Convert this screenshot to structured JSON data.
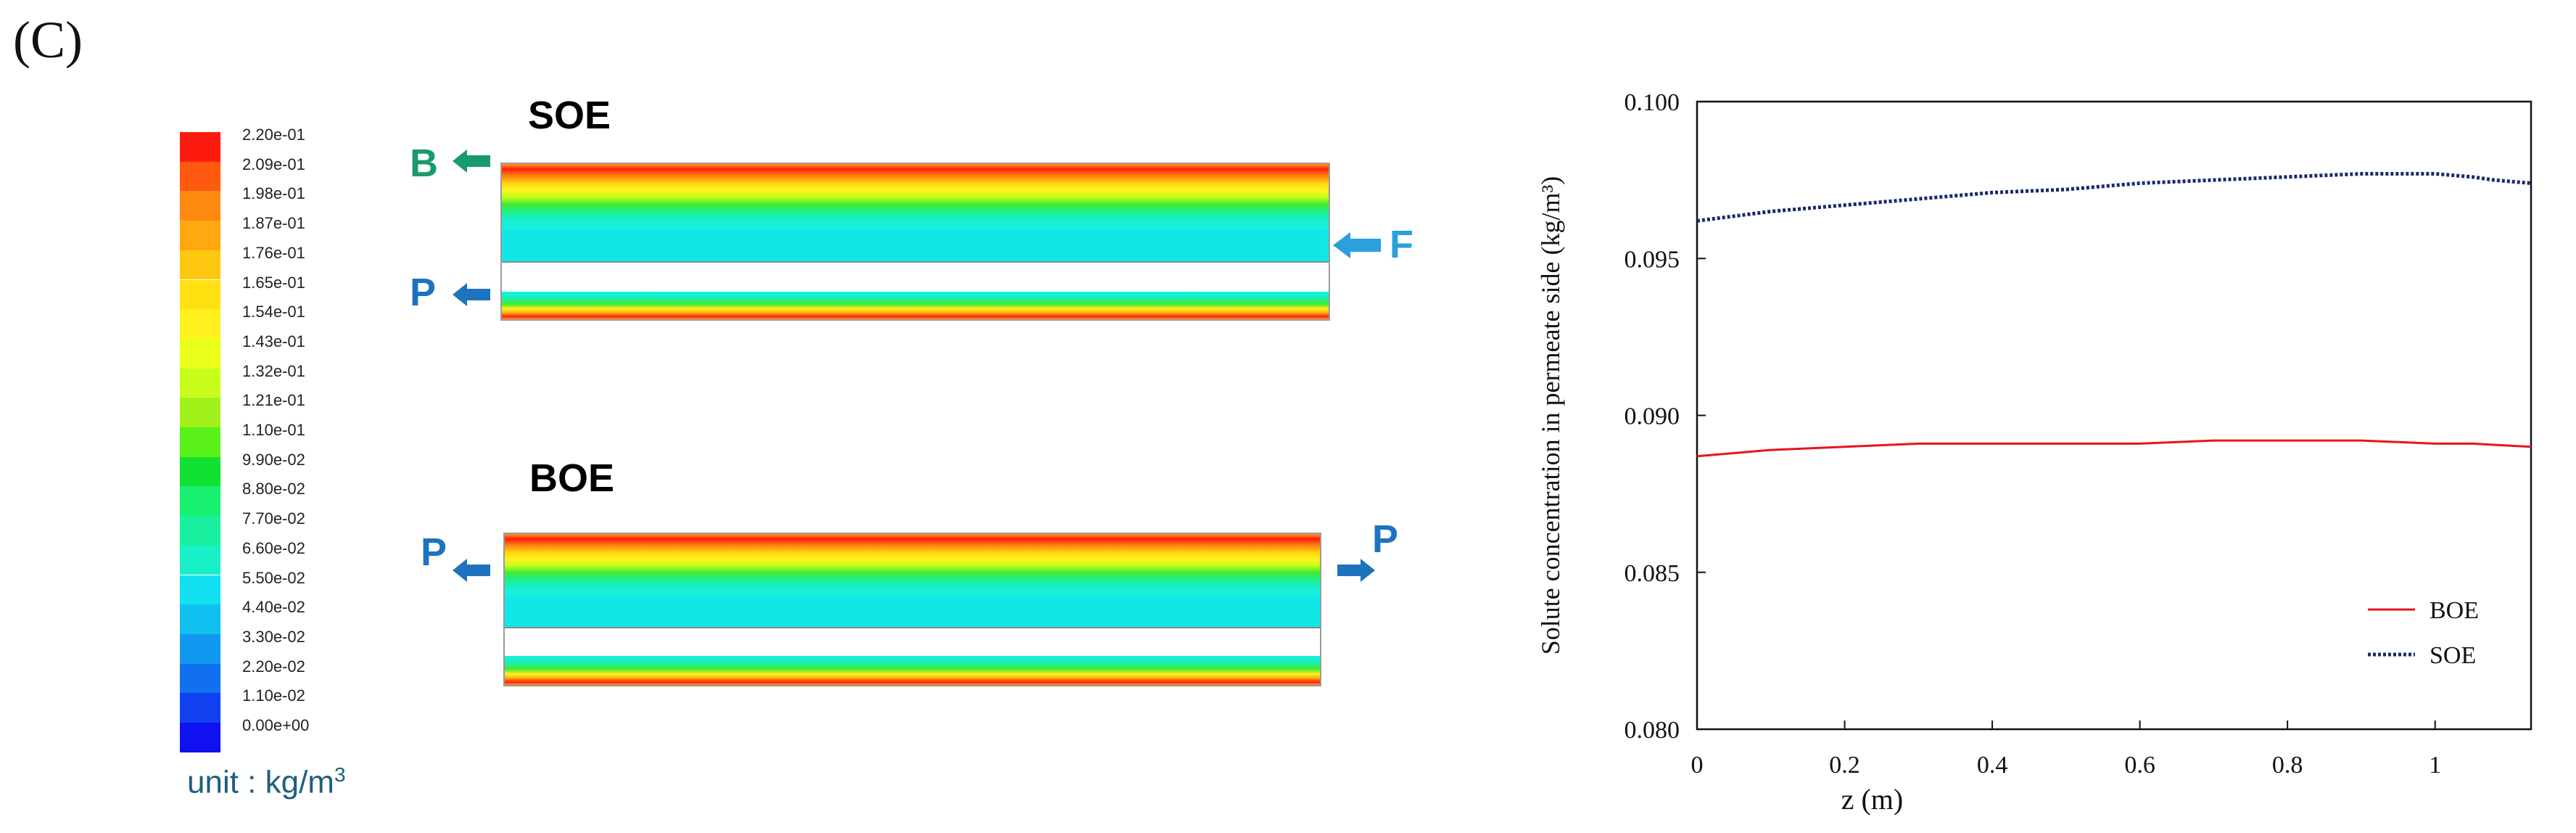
{
  "panel_label": "(C)",
  "colorbar": {
    "labels": [
      "2.20e-01",
      "2.09e-01",
      "1.98e-01",
      "1.87e-01",
      "1.76e-01",
      "1.65e-01",
      "1.54e-01",
      "1.43e-01",
      "1.32e-01",
      "1.21e-01",
      "1.10e-01",
      "9.90e-02",
      "8.80e-02",
      "7.70e-02",
      "6.60e-02",
      "5.50e-02",
      "4.40e-02",
      "3.30e-02",
      "2.20e-02",
      "1.10e-02",
      "0.00e+00"
    ],
    "colors": [
      "#ff1a10",
      "#ff5a10",
      "#ff8a10",
      "#ffa810",
      "#ffc810",
      "#ffe010",
      "#fff020",
      "#eaff1a",
      "#c8ff1a",
      "#a0f01a",
      "#5af01a",
      "#10e030",
      "#18f070",
      "#18f0a0",
      "#18f0c8",
      "#10e0f0",
      "#10c0f0",
      "#1098f0",
      "#1070f0",
      "#1040f0",
      "#1010f0"
    ],
    "unit_text": "unit : kg/m",
    "unit_sup": "3"
  },
  "diagrams": {
    "soe": {
      "title": "SOE",
      "title_color": "#1a4a6e",
      "labels": {
        "left_top": "B",
        "left_bottom": "P",
        "right": "F"
      }
    },
    "boe": {
      "title": "BOE",
      "title_color": "#ee1c24",
      "labels": {
        "left": "P",
        "right": "P"
      }
    },
    "arrow_color_green": "#1a9a6a",
    "arrow_color_blue": "#1e73be",
    "arrow_color_cyan": "#2aa0dc"
  },
  "chart_data": {
    "type": "line",
    "xlabel": "z (m)",
    "ylabel": "Solute concentration in permeate side (kg/m³)",
    "xlim": [
      0,
      1.13
    ],
    "ylim": [
      0.08,
      0.1
    ],
    "xticks": [
      0,
      0.2,
      0.4,
      0.6,
      0.8,
      1
    ],
    "xtick_labels": [
      "0",
      "0.2",
      "0.4",
      "0.6",
      "0.8",
      "1"
    ],
    "yticks": [
      0.08,
      0.085,
      0.09,
      0.095,
      0.1
    ],
    "ytick_labels": [
      "0.080",
      "0.085",
      "0.090",
      "0.095",
      "0.100"
    ],
    "legend_position": "bottom-right",
    "series": [
      {
        "name": "BOE",
        "color": "#e8141c",
        "style": "solid",
        "x": [
          0,
          0.1,
          0.2,
          0.3,
          0.4,
          0.5,
          0.6,
          0.7,
          0.8,
          0.9,
          1.0,
          1.05,
          1.13
        ],
        "y": [
          0.0887,
          0.0889,
          0.089,
          0.0891,
          0.0891,
          0.0891,
          0.0891,
          0.0892,
          0.0892,
          0.0892,
          0.0891,
          0.0891,
          0.089
        ]
      },
      {
        "name": "SOE",
        "color": "#1a2a6e",
        "style": "dotted",
        "x": [
          0,
          0.1,
          0.2,
          0.3,
          0.4,
          0.5,
          0.6,
          0.7,
          0.8,
          0.9,
          1.0,
          1.05,
          1.08,
          1.13
        ],
        "y": [
          0.0962,
          0.0965,
          0.0967,
          0.0969,
          0.0971,
          0.0972,
          0.0974,
          0.0975,
          0.0976,
          0.0977,
          0.0977,
          0.0976,
          0.0975,
          0.0974
        ]
      }
    ]
  }
}
